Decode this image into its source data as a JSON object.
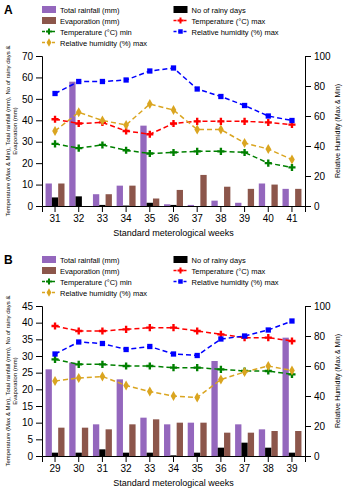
{
  "chart_data": [
    {
      "type": "bar",
      "title": "A",
      "x_label": "Standard meterological weeks",
      "y_label": "Temperature (Max & Min), Total rainfall (mm), No of rainy days &\nEvaporation (mm)",
      "y2_label": "Relative Humidity (Max & Min)",
      "categories": [
        31,
        32,
        33,
        34,
        35,
        36,
        37,
        38,
        39,
        40,
        41
      ],
      "series": [
        {
          "name": "Total rainfall (mm)",
          "type": "bar",
          "color": "#9467bd",
          "values": [
            10.5,
            58.0,
            5.5,
            9.5,
            37.5,
            0.8,
            0.5,
            2.5,
            1.5,
            10.5,
            8.0
          ]
        },
        {
          "name": "No of rainy days",
          "type": "bar",
          "color": "black",
          "values": [
            4.0,
            4.5,
            0.5,
            0.2,
            1.5,
            0.5,
            0.0,
            0.0,
            0.0,
            0.0,
            0.0
          ]
        },
        {
          "name": "Evaporation (mm)",
          "type": "bar",
          "color": "#8c564b",
          "values": [
            10.5,
            0.0,
            5.5,
            9.5,
            3.5,
            7.5,
            14.5,
            9.0,
            8.0,
            10.0,
            8.0
          ]
        },
        {
          "name": "Temperature (°C) max",
          "type": "line",
          "color": "red",
          "marker": "plus",
          "line_style": "dashed",
          "values": [
            40.5,
            38.5,
            39.0,
            35.0,
            33.5,
            38.5,
            39.5,
            39.5,
            39.5,
            39.0,
            38.0
          ]
        },
        {
          "name": "Temperature (°C) min",
          "type": "line",
          "color": "green",
          "marker": "plus",
          "line_style": "dashed",
          "values": [
            29.0,
            27.0,
            28.5,
            26.0,
            24.5,
            25.0,
            25.5,
            25.5,
            25.0,
            20.0,
            18.0
          ]
        },
        {
          "name": "Relative humidity (%) max",
          "type": "line",
          "axis": "y2",
          "color": "blue",
          "marker": "square",
          "line_style": "dashed",
          "values": [
            75.0,
            83.0,
            83.0,
            84.0,
            90.0,
            92.0,
            78.0,
            73.0,
            67.0,
            60.0,
            57.0
          ]
        },
        {
          "name": "Relative humidity (%) max",
          "type": "line",
          "axis": "y2",
          "color": "#DAA520",
          "marker": "diamond",
          "line_style": "dashed",
          "values": [
            50.0,
            62.5,
            57.0,
            54.0,
            68.0,
            64.0,
            51.0,
            51.0,
            42.0,
            38.0,
            31.0
          ]
        }
      ],
      "ylim": [
        0,
        70
      ],
      "yticks": [
        0,
        10,
        20,
        30,
        40,
        50,
        60,
        70
      ],
      "y2lim": [
        0,
        100
      ],
      "y2ticks": [
        0,
        20,
        40,
        60,
        80,
        100
      ],
      "grid": false,
      "legend": "upper left"
    },
    {
      "type": "bar",
      "title": "B",
      "x_label": "Standard meterological weeks",
      "y_label": "Temperature (Max & Min), Total rainfall (mm), No of rainy days &\nEvaporation (mm)",
      "y2_label": "Relative Humidity (Max & Min)",
      "categories": [
        29,
        30,
        31,
        32,
        33,
        34,
        35,
        36,
        37,
        38,
        39
      ],
      "series": [
        {
          "name": "Total rainfall (mm)",
          "type": "bar",
          "color": "#9467bd",
          "values": [
            26.0,
            28.0,
            9.5,
            23.0,
            11.5,
            9.5,
            10.0,
            28.5,
            9.5,
            8.0,
            35.5
          ]
        },
        {
          "name": "No of rainy days",
          "type": "bar",
          "color": "black",
          "values": [
            1.0,
            1.0,
            2.0,
            1.0,
            1.0,
            0.2,
            1.0,
            2.5,
            4.0,
            2.5,
            1.0
          ]
        },
        {
          "name": "Evaporation (mm)",
          "type": "bar",
          "color": "#8c564b",
          "values": [
            8.5,
            8.5,
            8.0,
            9.5,
            11.0,
            10.0,
            10.0,
            7.0,
            7.0,
            7.5,
            7.5
          ]
        },
        {
          "name": "Temperature (°C) max",
          "type": "line",
          "color": "red",
          "marker": "plus",
          "line_style": "dashed",
          "values": [
            39.0,
            37.5,
            37.5,
            38.0,
            38.5,
            38.5,
            37.5,
            36.5,
            35.5,
            35.5,
            34.5
          ]
        },
        {
          "name": "Temperature (°C) min",
          "type": "line",
          "color": "green",
          "marker": "plus",
          "line_style": "dashed",
          "values": [
            29.0,
            27.5,
            27.5,
            27.0,
            27.0,
            26.5,
            26.5,
            26.0,
            25.5,
            25.5,
            24.5
          ]
        },
        {
          "name": "Relative humidity (%) max",
          "type": "line",
          "axis": "y2",
          "color": "blue",
          "marker": "square",
          "line_style": "dashed",
          "values": [
            68.0,
            76.0,
            75.0,
            71.0,
            73.0,
            68.0,
            67.0,
            78.0,
            80.0,
            84.0,
            90.0
          ]
        },
        {
          "name": "Relative humidity (%) max",
          "type": "line",
          "axis": "y2",
          "color": "#DAA520",
          "marker": "diamond",
          "line_style": "dashed",
          "values": [
            50.0,
            52.0,
            53.0,
            47.0,
            43.0,
            40.0,
            39.0,
            51.0,
            56.0,
            60.0,
            57.0
          ]
        }
      ],
      "ylim": [
        0,
        45
      ],
      "yticks": [
        0,
        5,
        10,
        15,
        20,
        25,
        30,
        35,
        40,
        45
      ],
      "y2lim": [
        0,
        100
      ],
      "y2ticks": [
        0,
        20,
        40,
        60,
        80,
        100
      ],
      "grid": false,
      "legend": "upper left"
    }
  ]
}
